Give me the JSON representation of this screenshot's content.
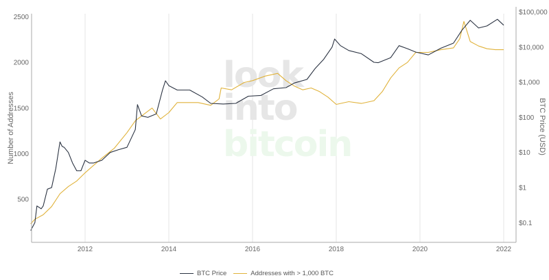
{
  "chart_data": {
    "type": "line",
    "title": "",
    "xlabel": "",
    "ylabel": "Number of Addresses",
    "y2label": "BTC Price (USD)",
    "x_ticks": [
      "2012",
      "2014",
      "2016",
      "2018",
      "2020",
      "2022"
    ],
    "y_ticks": [
      "500",
      "1000",
      "1500",
      "2000",
      "2500"
    ],
    "y2_ticks": [
      "$0.1",
      "$1",
      "$10",
      "$100",
      "$1,000",
      "$10,000",
      "$100,000"
    ],
    "y_range": [
      40,
      2600
    ],
    "y2_scale": "log",
    "y2_range": [
      0.03,
      120000
    ],
    "x_range": [
      2010.7,
      2022.3
    ],
    "grid": {
      "vertical": true,
      "horizontal": false
    },
    "legend_position": "bottom-center",
    "watermark": [
      "look",
      "into",
      "bitcoin"
    ],
    "series": [
      {
        "name": "BTC Price",
        "axis": "y2",
        "color": "#2a3241",
        "x": [
          2010.7,
          2010.8,
          2010.85,
          2010.95,
          2011.0,
          2011.1,
          2011.2,
          2011.3,
          2011.4,
          2011.45,
          2011.5,
          2011.6,
          2011.7,
          2011.8,
          2011.9,
          2012.0,
          2012.1,
          2012.2,
          2012.4,
          2012.6,
          2012.8,
          2013.0,
          2013.2,
          2013.25,
          2013.35,
          2013.5,
          2013.7,
          2013.85,
          2013.92,
          2014.0,
          2014.2,
          2014.5,
          2014.8,
          2015.0,
          2015.3,
          2015.6,
          2015.9,
          2016.2,
          2016.5,
          2016.8,
          2017.0,
          2017.3,
          2017.5,
          2017.7,
          2017.9,
          2017.96,
          2018.1,
          2018.3,
          2018.6,
          2018.9,
          2019.0,
          2019.3,
          2019.5,
          2019.7,
          2019.9,
          2020.2,
          2020.5,
          2020.8,
          2021.0,
          2021.2,
          2021.4,
          2021.6,
          2021.85,
          2022.0
        ],
        "values": [
          0.06,
          0.1,
          0.3,
          0.25,
          0.3,
          0.9,
          1.0,
          3.5,
          20.0,
          15.0,
          14.0,
          10.0,
          5.0,
          3.0,
          3.0,
          6.0,
          5.0,
          5.0,
          6.0,
          10.0,
          12.0,
          14.0,
          45.0,
          230.0,
          110.0,
          100.0,
          125.0,
          600.0,
          1100.0,
          800.0,
          600.0,
          600.0,
          380.0,
          250.0,
          240.0,
          250.0,
          400.0,
          420.0,
          650.0,
          700.0,
          950.0,
          1200.0,
          2500.0,
          4500.0,
          10000.0,
          17000.0,
          11000.0,
          8000.0,
          6500.0,
          3700.0,
          3600.0,
          5000.0,
          11000.0,
          9000.0,
          7200.0,
          6000.0,
          9300.0,
          13000.0,
          30000.0,
          58000.0,
          35000.0,
          40000.0,
          62000.0,
          42000.0
        ]
      },
      {
        "name": "Addresses with > 1,000 BTC",
        "axis": "y",
        "color": "#e0b23a",
        "x": [
          2010.7,
          2010.8,
          2011.0,
          2011.2,
          2011.4,
          2011.6,
          2011.8,
          2012.0,
          2012.2,
          2012.4,
          2012.7,
          2013.0,
          2013.2,
          2013.4,
          2013.6,
          2013.8,
          2014.0,
          2014.2,
          2014.4,
          2014.7,
          2015.0,
          2015.2,
          2015.25,
          2015.5,
          2015.8,
          2016.0,
          2016.3,
          2016.6,
          2016.8,
          2017.0,
          2017.2,
          2017.4,
          2017.6,
          2017.8,
          2018.0,
          2018.3,
          2018.6,
          2018.9,
          2019.1,
          2019.3,
          2019.5,
          2019.7,
          2019.9,
          2020.2,
          2020.5,
          2020.8,
          2020.95,
          2021.05,
          2021.2,
          2021.4,
          2021.6,
          2021.8,
          2022.0
        ],
        "values": [
          230,
          280,
          330,
          420,
          560,
          640,
          700,
          790,
          870,
          950,
          1060,
          1230,
          1360,
          1430,
          1500,
          1380,
          1450,
          1560,
          1560,
          1560,
          1530,
          1600,
          1720,
          1700,
          1780,
          1800,
          1850,
          1880,
          1800,
          1740,
          1700,
          1720,
          1680,
          1620,
          1540,
          1570,
          1550,
          1580,
          1680,
          1830,
          1940,
          2000,
          2110,
          2110,
          2140,
          2160,
          2260,
          2450,
          2230,
          2180,
          2150,
          2140,
          2140
        ]
      }
    ]
  },
  "legend": {
    "items": [
      {
        "label": "BTC Price",
        "color": "#2a3241"
      },
      {
        "label": "Addresses with > 1,000 BTC",
        "color": "#e0b23a"
      }
    ]
  },
  "axes": {
    "left_title": "Number of Addresses",
    "right_title": "BTC Price (USD)"
  }
}
